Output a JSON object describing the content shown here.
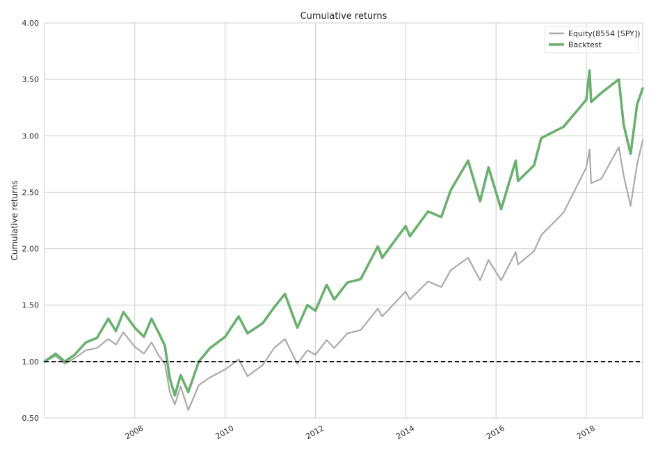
{
  "chart_data": {
    "type": "line",
    "title": "Cumulative returns",
    "xlabel": "",
    "ylabel": "Cumulative returns",
    "xlim": [
      "2006-01-01",
      "2019-04-01"
    ],
    "ylim": [
      0.5,
      4.0
    ],
    "y_ticks": [
      "0.50",
      "1.00",
      "1.50",
      "2.00",
      "2.50",
      "3.00",
      "3.50",
      "4.00"
    ],
    "x_ticks": [
      "2008",
      "2010",
      "2012",
      "2014",
      "2016",
      "2018"
    ],
    "grid": true,
    "legend_position": "top-right",
    "reference_line": {
      "y": 1.0,
      "style": "dashed",
      "color": "#000000"
    },
    "series": [
      {
        "name": "Equity(8554 [SPY])",
        "color": "#aaaaaa",
        "points": [
          [
            "2006-01-01",
            1.0
          ],
          [
            "2006-04-01",
            1.05
          ],
          [
            "2006-06-15",
            0.98
          ],
          [
            "2006-09-01",
            1.03
          ],
          [
            "2006-12-01",
            1.1
          ],
          [
            "2007-03-01",
            1.12
          ],
          [
            "2007-06-01",
            1.2
          ],
          [
            "2007-08-01",
            1.15
          ],
          [
            "2007-10-01",
            1.26
          ],
          [
            "2008-01-01",
            1.13
          ],
          [
            "2008-03-15",
            1.07
          ],
          [
            "2008-05-15",
            1.17
          ],
          [
            "2008-07-15",
            1.05
          ],
          [
            "2008-09-01",
            0.98
          ],
          [
            "2008-10-10",
            0.73
          ],
          [
            "2008-11-20",
            0.62
          ],
          [
            "2009-01-06",
            0.78
          ],
          [
            "2009-03-09",
            0.57
          ],
          [
            "2009-06-01",
            0.79
          ],
          [
            "2009-09-01",
            0.86
          ],
          [
            "2010-01-01",
            0.93
          ],
          [
            "2010-04-20",
            1.02
          ],
          [
            "2010-07-01",
            0.87
          ],
          [
            "2010-11-01",
            0.97
          ],
          [
            "2011-02-01",
            1.12
          ],
          [
            "2011-04-29",
            1.2
          ],
          [
            "2011-08-08",
            0.98
          ],
          [
            "2011-10-28",
            1.1
          ],
          [
            "2012-01-01",
            1.06
          ],
          [
            "2012-04-01",
            1.19
          ],
          [
            "2012-06-01",
            1.12
          ],
          [
            "2012-09-15",
            1.25
          ],
          [
            "2013-01-01",
            1.28
          ],
          [
            "2013-05-20",
            1.47
          ],
          [
            "2013-06-24",
            1.4
          ],
          [
            "2013-12-31",
            1.62
          ],
          [
            "2014-02-03",
            1.55
          ],
          [
            "2014-06-30",
            1.71
          ],
          [
            "2014-10-15",
            1.66
          ],
          [
            "2014-12-31",
            1.81
          ],
          [
            "2015-05-20",
            1.92
          ],
          [
            "2015-08-25",
            1.72
          ],
          [
            "2015-11-01",
            1.9
          ],
          [
            "2016-02-11",
            1.72
          ],
          [
            "2016-06-08",
            1.97
          ],
          [
            "2016-06-27",
            1.86
          ],
          [
            "2016-11-04",
            1.98
          ],
          [
            "2016-12-31",
            2.12
          ],
          [
            "2017-06-30",
            2.32
          ],
          [
            "2017-12-31",
            2.72
          ],
          [
            "2018-01-26",
            2.88
          ],
          [
            "2018-02-08",
            2.58
          ],
          [
            "2018-05-01",
            2.62
          ],
          [
            "2018-09-20",
            2.9
          ],
          [
            "2018-10-29",
            2.65
          ],
          [
            "2018-12-24",
            2.38
          ],
          [
            "2019-02-15",
            2.75
          ],
          [
            "2019-04-01",
            2.96
          ]
        ]
      },
      {
        "name": "Backtest",
        "color": "#6ab06e",
        "points": [
          [
            "2006-01-01",
            1.0
          ],
          [
            "2006-04-01",
            1.07
          ],
          [
            "2006-06-15",
            1.0
          ],
          [
            "2006-09-01",
            1.06
          ],
          [
            "2006-12-01",
            1.17
          ],
          [
            "2007-03-01",
            1.21
          ],
          [
            "2007-06-01",
            1.38
          ],
          [
            "2007-08-01",
            1.27
          ],
          [
            "2007-10-01",
            1.44
          ],
          [
            "2008-01-01",
            1.3
          ],
          [
            "2008-03-15",
            1.22
          ],
          [
            "2008-05-15",
            1.38
          ],
          [
            "2008-07-15",
            1.25
          ],
          [
            "2008-09-01",
            1.14
          ],
          [
            "2008-10-10",
            0.85
          ],
          [
            "2008-11-20",
            0.7
          ],
          [
            "2009-01-06",
            0.88
          ],
          [
            "2009-03-09",
            0.73
          ],
          [
            "2009-06-01",
            1.0
          ],
          [
            "2009-09-01",
            1.12
          ],
          [
            "2010-01-01",
            1.22
          ],
          [
            "2010-04-20",
            1.4
          ],
          [
            "2010-07-01",
            1.25
          ],
          [
            "2010-11-01",
            1.34
          ],
          [
            "2011-02-01",
            1.48
          ],
          [
            "2011-04-29",
            1.6
          ],
          [
            "2011-08-08",
            1.3
          ],
          [
            "2011-10-28",
            1.5
          ],
          [
            "2012-01-01",
            1.45
          ],
          [
            "2012-04-01",
            1.68
          ],
          [
            "2012-06-01",
            1.55
          ],
          [
            "2012-09-15",
            1.7
          ],
          [
            "2013-01-01",
            1.73
          ],
          [
            "2013-05-20",
            2.02
          ],
          [
            "2013-06-24",
            1.92
          ],
          [
            "2013-12-31",
            2.2
          ],
          [
            "2014-02-03",
            2.11
          ],
          [
            "2014-06-30",
            2.33
          ],
          [
            "2014-10-15",
            2.28
          ],
          [
            "2014-12-31",
            2.52
          ],
          [
            "2015-05-20",
            2.78
          ],
          [
            "2015-08-25",
            2.42
          ],
          [
            "2015-11-01",
            2.72
          ],
          [
            "2016-02-11",
            2.35
          ],
          [
            "2016-06-08",
            2.78
          ],
          [
            "2016-06-27",
            2.6
          ],
          [
            "2016-11-04",
            2.74
          ],
          [
            "2016-12-31",
            2.98
          ],
          [
            "2017-06-30",
            3.08
          ],
          [
            "2017-12-31",
            3.32
          ],
          [
            "2018-01-26",
            3.58
          ],
          [
            "2018-02-08",
            3.3
          ],
          [
            "2018-05-01",
            3.38
          ],
          [
            "2018-09-20",
            3.5
          ],
          [
            "2018-10-29",
            3.1
          ],
          [
            "2018-12-24",
            2.84
          ],
          [
            "2019-02-15",
            3.28
          ],
          [
            "2019-04-01",
            3.42
          ]
        ]
      }
    ]
  }
}
